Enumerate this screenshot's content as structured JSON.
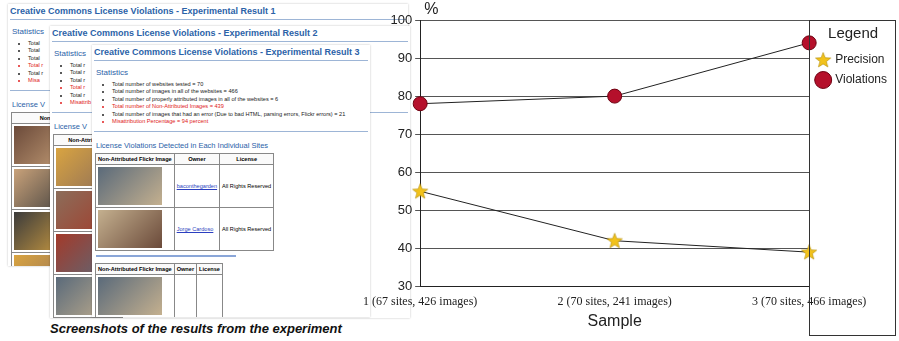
{
  "screenshots": {
    "caption": "Screenshots of the results from the experiment",
    "panels": [
      {
        "title": "Creative Commons License Violations - Experimental Result 1",
        "heading": "Statistics",
        "stats": [
          {
            "text": "Total"
          },
          {
            "text": "Total"
          },
          {
            "text": "Total"
          },
          {
            "text": "Total r",
            "color": "#e02020"
          },
          {
            "text": "Total r"
          },
          {
            "text": "Misa",
            "color": "#e02020"
          }
        ],
        "section": "License V",
        "tables": [
          {
            "header": [
              "Non-"
            ],
            "rows": []
          }
        ]
      },
      {
        "title": "Creative Commons License Violations - Experimental Result 2",
        "heading": "Statistics",
        "stats": [
          {
            "text": "Total r"
          },
          {
            "text": "Total r"
          },
          {
            "text": "Total r"
          },
          {
            "text": "Total r",
            "color": "#e02020"
          },
          {
            "text": "Total r"
          },
          {
            "text": "Misattrib",
            "color": "#e02020"
          }
        ],
        "section": "License V",
        "tables": [
          {
            "header": [
              "Non-Attributed"
            ],
            "rows": []
          }
        ]
      },
      {
        "title": "Creative Commons License Violations - Experimental Result 3",
        "heading": "Statistics",
        "stats": [
          {
            "text": "Total number of websites tested = 70"
          },
          {
            "text": "Total number of images in all of the websites = 466"
          },
          {
            "text": "Total number of properly attributed images in all of the websites = 6"
          },
          {
            "text": "Total number of Non-Attributed Images = 439",
            "color": "#e02020"
          },
          {
            "text": "Total number of images that had an error (Due to bad HTML, parsing errors, Flickr errors) = 21"
          },
          {
            "text": "Misattribution Percentage = 94 percent",
            "color": "#e02020"
          }
        ],
        "section": "License Violations Detected in Each Individual Sites",
        "tables": [
          {
            "header": [
              "Non-Attributed Flickr Image",
              "Owner",
              "License"
            ],
            "rows": [
              {
                "owner": "baconthegarden",
                "license": "All Rights Reserved"
              },
              {
                "owner": "Jorge Cardoso",
                "license": "All Rights Reserved"
              }
            ]
          },
          {
            "header": [
              "Non-Attributed Flickr Image",
              "Owner",
              "License"
            ],
            "rows": []
          }
        ]
      }
    ]
  },
  "chart_data": {
    "type": "line",
    "y_label": "%",
    "x_label": "Sample",
    "categories": [
      "1 (67 sites, 426 images)",
      "2 (70 sites, 241 images)",
      "3 (70 sites, 466 images)"
    ],
    "series": [
      {
        "name": "Precision",
        "color": "#f2c21b",
        "marker": "star",
        "values": [
          55,
          42,
          39
        ]
      },
      {
        "name": "Violations",
        "color": "#b5102b",
        "marker": "circle",
        "values": [
          78,
          80,
          94
        ]
      }
    ],
    "legend_title": "Legend",
    "legend": "right",
    "ylim": [
      30,
      100
    ],
    "yticks": [
      30,
      40,
      50,
      60,
      70,
      80,
      90,
      100
    ],
    "grid": true
  }
}
